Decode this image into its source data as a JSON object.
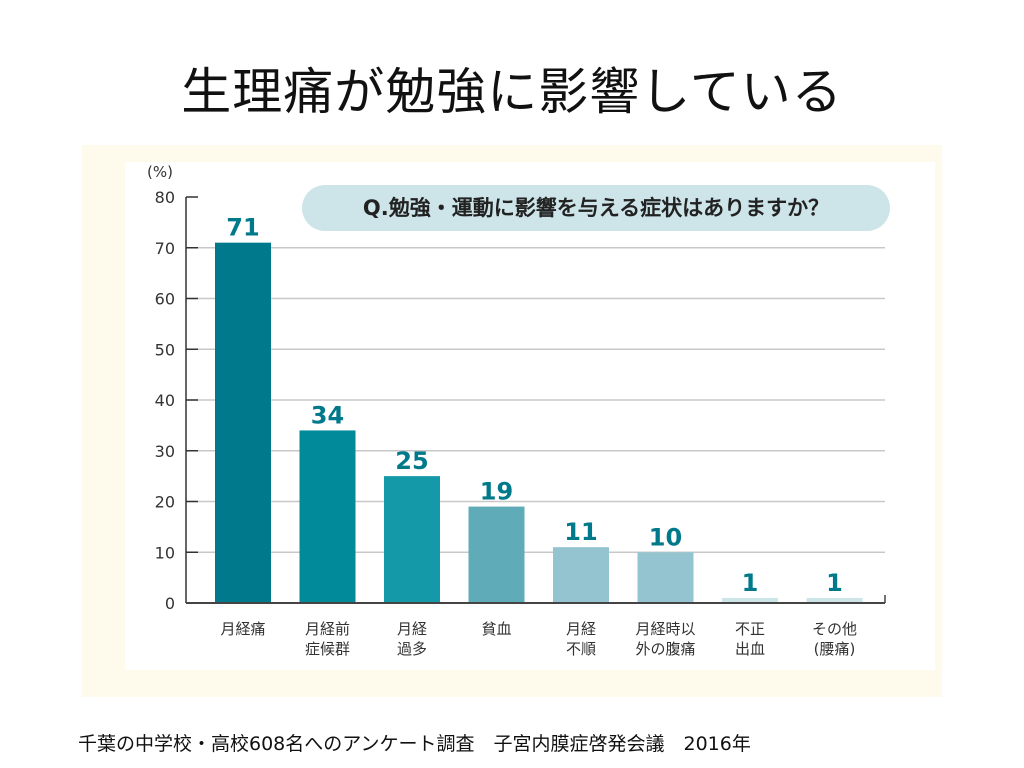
{
  "slide_title": "生理痛が勉強に影響している",
  "caption": "千葉の中学校・高校608名へのアンケート調査　子宮内膜症啓発会議　2016年",
  "chart_data": {
    "type": "bar",
    "title": "Q.勉強・運動に影響を与える症状はありますか？",
    "ylabel": "(%)",
    "xlabel": "",
    "ylim": [
      0,
      80
    ],
    "yticks": [
      0,
      10,
      20,
      30,
      40,
      50,
      60,
      70,
      80
    ],
    "grid": true,
    "categories": [
      [
        "月経痛"
      ],
      [
        "月経前",
        "症候群"
      ],
      [
        "月経",
        "過多"
      ],
      [
        "貧血"
      ],
      [
        "月経",
        "不順"
      ],
      [
        "月経時以",
        "外の腹痛"
      ],
      [
        "不正",
        "出血"
      ],
      [
        "その他",
        "(腰痛)"
      ]
    ],
    "values": [
      71,
      34,
      25,
      19,
      11,
      10,
      1,
      1
    ],
    "bar_colors": [
      "#00798c",
      "#008a9a",
      "#1499a8",
      "#5fabb8",
      "#94c4cf",
      "#94c4cf",
      "#cde4e8",
      "#cde4e8"
    ],
    "label_color": "#007a8a"
  }
}
